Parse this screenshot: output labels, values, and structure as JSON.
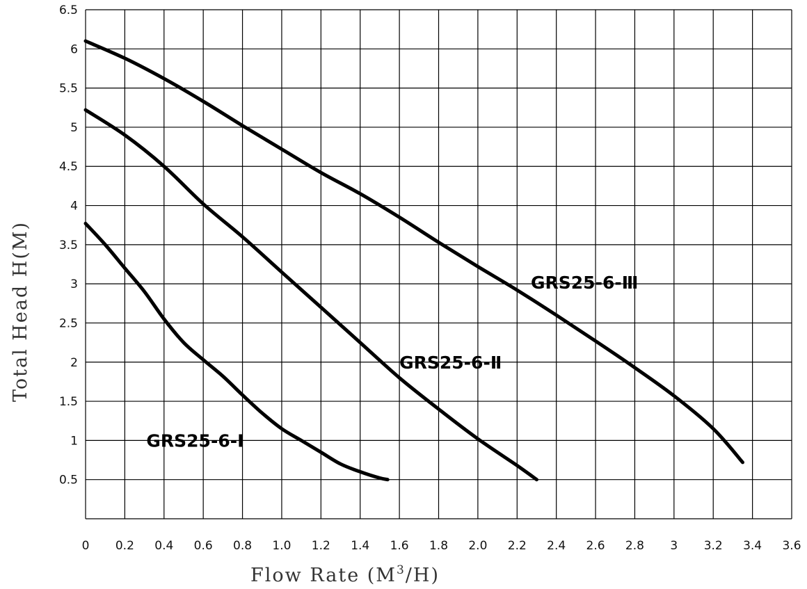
{
  "chart_data": {
    "type": "line",
    "title": "",
    "xlabel": "Flow Rate (M",
    "xlabel_sup": "3",
    "xlabel_tail": "/H)",
    "ylabel": "Total Head H(M)",
    "xlim": [
      0,
      3.6
    ],
    "ylim": [
      0,
      6.5
    ],
    "grid": true,
    "legend": "none (labels on curves)",
    "line_color": "#000000",
    "x_ticks": [
      "0",
      "0.2",
      "0.4",
      "0.6",
      "0.8",
      "1.0",
      "1.2",
      "1.4",
      "1.6",
      "1.8",
      "2.0",
      "2.2",
      "2.4",
      "2.6",
      "2.8",
      "3",
      "3.2",
      "3.4",
      "3.6"
    ],
    "y_ticks": [
      "0.5",
      "1",
      "1.5",
      "2",
      "2.5",
      "3",
      "3.5",
      "4",
      "4.5",
      "5",
      "5.5",
      "6",
      "6.5"
    ],
    "series": [
      {
        "name": "GRS25-6-Ⅰ",
        "x": [
          0,
          0.1,
          0.2,
          0.3,
          0.4,
          0.5,
          0.6,
          0.7,
          0.8,
          0.9,
          1.0,
          1.1,
          1.2,
          1.3,
          1.4,
          1.5,
          1.54
        ],
        "y": [
          3.77,
          3.5,
          3.2,
          2.9,
          2.55,
          2.25,
          2.03,
          1.82,
          1.58,
          1.35,
          1.15,
          1.0,
          0.85,
          0.7,
          0.6,
          0.52,
          0.5
        ]
      },
      {
        "name": "GRS25-6-Ⅱ",
        "x": [
          0,
          0.2,
          0.4,
          0.6,
          0.8,
          1.0,
          1.2,
          1.4,
          1.6,
          1.8,
          2.0,
          2.2,
          2.3
        ],
        "y": [
          5.22,
          4.9,
          4.5,
          4.02,
          3.6,
          3.15,
          2.7,
          2.25,
          1.8,
          1.4,
          1.02,
          0.68,
          0.5
        ]
      },
      {
        "name": "GRS25-6-Ⅲ",
        "x": [
          0,
          0.2,
          0.4,
          0.6,
          0.8,
          1.0,
          1.2,
          1.4,
          1.6,
          1.8,
          2.0,
          2.2,
          2.4,
          2.6,
          2.8,
          3.0,
          3.2,
          3.35
        ],
        "y": [
          6.1,
          5.88,
          5.62,
          5.33,
          5.02,
          4.72,
          4.42,
          4.15,
          3.85,
          3.53,
          3.22,
          2.92,
          2.6,
          2.27,
          1.93,
          1.57,
          1.15,
          0.72
        ]
      }
    ],
    "annotations": [
      {
        "text": "GRS25-6-Ⅰ",
        "x": 0.31,
        "y": 1.0
      },
      {
        "text": "GRS25-6-Ⅱ",
        "x": 1.6,
        "y": 2.0
      },
      {
        "text": "GRS25-6-Ⅲ",
        "x": 2.27,
        "y": 3.02
      }
    ]
  }
}
